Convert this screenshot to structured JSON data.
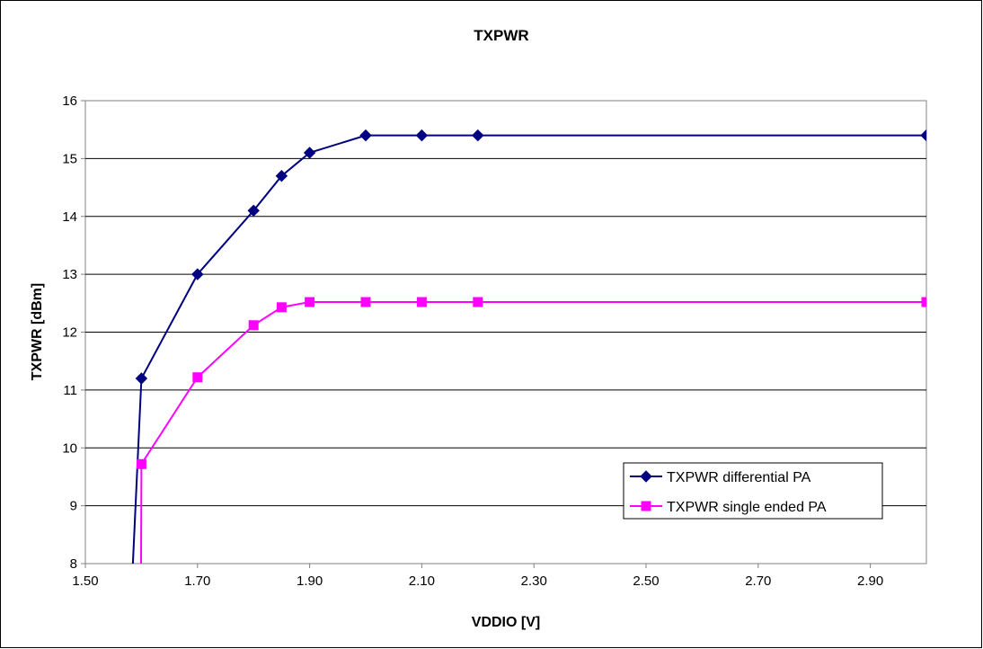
{
  "chart_data": {
    "type": "line",
    "title": "TXPWR",
    "xlabel": "VDDIO [V]",
    "ylabel": "TXPWR [dBm]",
    "xlim": [
      1.5,
      3.0
    ],
    "ylim": [
      8,
      16
    ],
    "x_ticks": [
      "1.50",
      "1.70",
      "1.90",
      "2.10",
      "2.30",
      "2.50",
      "2.70",
      "2.90"
    ],
    "y_ticks": [
      "8",
      "9",
      "10",
      "11",
      "12",
      "13",
      "14",
      "15",
      "16"
    ],
    "grid": "horizontal",
    "legend_position": "bottom-right",
    "series": [
      {
        "name": "TXPWR differential PA",
        "color": "#000080",
        "marker": "diamond",
        "x": [
          1.58,
          1.6,
          1.7,
          1.8,
          1.85,
          1.9,
          2.0,
          2.1,
          2.2,
          3.0
        ],
        "y": [
          7.0,
          11.2,
          13.0,
          14.1,
          14.7,
          15.1,
          15.4,
          15.4,
          15.4,
          15.4
        ],
        "marker_from_index": 1
      },
      {
        "name": "TXPWR single ended PA",
        "color": "#ff00ff",
        "marker": "square",
        "x": [
          1.599,
          1.6,
          1.7,
          1.8,
          1.85,
          1.9,
          2.0,
          2.1,
          2.2,
          3.0
        ],
        "y": [
          7.0,
          9.72,
          11.22,
          12.12,
          12.43,
          12.52,
          12.52,
          12.52,
          12.52,
          12.52
        ],
        "marker_from_index": 1
      }
    ]
  }
}
